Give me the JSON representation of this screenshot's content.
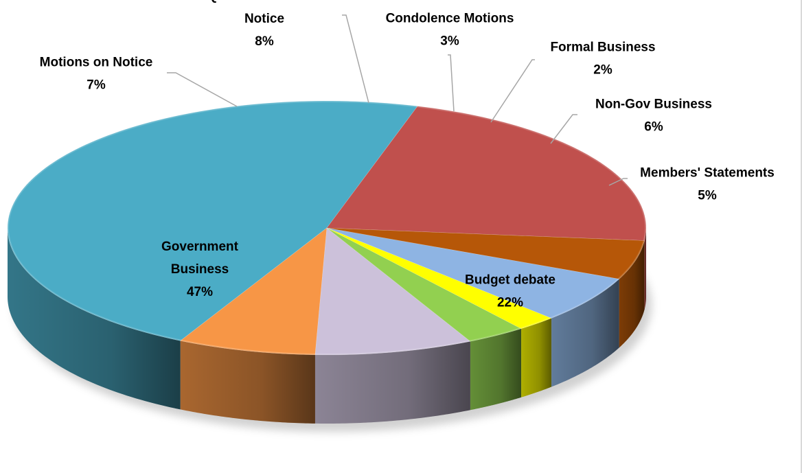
{
  "chart_data": {
    "type": "pie",
    "style": "3d",
    "slices": [
      {
        "name": "Government Business",
        "label_lines": [
          "Government",
          "Business"
        ],
        "value": 47,
        "pct_label": "47%",
        "color": "#4BACC6"
      },
      {
        "name": "Motions on Notice",
        "label_lines": [
          "Motions on Notice"
        ],
        "value": 7,
        "pct_label": "7%",
        "color": "#F79646"
      },
      {
        "name": "Questions without Notice",
        "label_lines": [
          "Questions without",
          "Notice"
        ],
        "value": 8,
        "pct_label": "8%",
        "color": "#CCC1DA"
      },
      {
        "name": "Condolence Motions",
        "label_lines": [
          "Condolence Motions"
        ],
        "value": 3,
        "pct_label": "3%",
        "color": "#92D050"
      },
      {
        "name": "Formal Business",
        "label_lines": [
          "Formal Business"
        ],
        "value": 2,
        "pct_label": "2%",
        "color": "#FFFF00"
      },
      {
        "name": "Non-Gov Business",
        "label_lines": [
          "Non-Gov Business"
        ],
        "value": 6,
        "pct_label": "6%",
        "color": "#8EB4E3"
      },
      {
        "name": "Members' Statements",
        "label_lines": [
          "Members' Statements"
        ],
        "value": 5,
        "pct_label": "5%",
        "color": "#B65708"
      },
      {
        "name": "Budget debate",
        "label_lines": [
          "Budget debate"
        ],
        "value": 22,
        "pct_label": "22%",
        "color": "#C0504D"
      }
    ]
  }
}
